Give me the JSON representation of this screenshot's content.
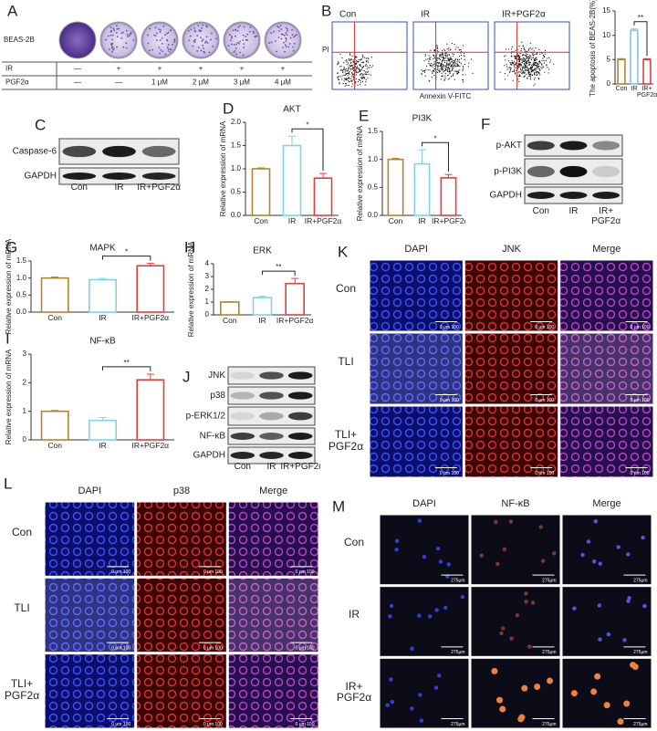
{
  "chart_data": [
    {
      "type": "bar",
      "y_label": "The apoptosis of BEAS-2B(%)",
      "categories": [
        "Con",
        "IR",
        "IR+ PGF2α"
      ],
      "values": [
        5,
        11,
        5
      ],
      "errors": [
        0.2,
        0.3,
        0.2
      ],
      "colors": [
        "#b5832e",
        "#7fc8e8",
        "#e0403a"
      ],
      "ylim": [
        0,
        15
      ],
      "yticks": [
        0,
        5,
        10,
        15
      ],
      "annotation": "**"
    },
    {
      "type": "bar",
      "title": "AKT",
      "y_label": "Relative expression of mRNA",
      "categories": [
        "Con",
        "IR",
        "IR+PGF2α"
      ],
      "values": [
        1.0,
        1.5,
        0.8
      ],
      "errors": [
        0.02,
        0.2,
        0.1
      ],
      "colors": [
        "#b5832e",
        "#7fd3e6",
        "#e0403a"
      ],
      "ylim": [
        0,
        2
      ],
      "yticks": [
        {
          "value": 0,
          "label": "0.0"
        },
        0.5,
        {
          "value": 1,
          "label": "1.0"
        },
        1.5,
        {
          "value": 2,
          "label": "2.0"
        }
      ],
      "annotation": "*"
    },
    {
      "type": "bar",
      "title": "PI3K",
      "y_label": "Relative expression of mRNA",
      "categories": [
        "Con",
        "IR",
        "IR+PGF2α"
      ],
      "values": [
        1.0,
        0.92,
        0.67
      ],
      "errors": [
        0.02,
        0.25,
        0.06
      ],
      "colors": [
        "#b5832e",
        "#7fd3e6",
        "#e0403a"
      ],
      "ylim": [
        0,
        1.5
      ],
      "yticks": [
        {
          "value": 0,
          "label": "0.0"
        },
        0.5,
        {
          "value": 1,
          "label": "1.0"
        },
        1.5
      ],
      "annotation": "*"
    },
    {
      "type": "bar",
      "title": "MAPK",
      "y_label": "Relative expression of mRNA",
      "categories": [
        "Con",
        "IR",
        "IR+PGF2α"
      ],
      "values": [
        1.0,
        0.95,
        1.36
      ],
      "errors": [
        0.03,
        0.04,
        0.07
      ],
      "colors": [
        "#b5832e",
        "#7fd3e6",
        "#e0403a"
      ],
      "ylim": [
        0,
        1.5
      ],
      "yticks": [
        {
          "value": 0,
          "label": "0.0"
        },
        0.5,
        {
          "value": 1,
          "label": "1.0"
        },
        1.5
      ],
      "annotation": "*"
    },
    {
      "type": "bar",
      "title": "ERK",
      "y_label": "Relative expression of mRNA",
      "categories": [
        "Con",
        "IR",
        "IR+PGF2α"
      ],
      "values": [
        1.0,
        1.35,
        2.45
      ],
      "errors": [
        0.03,
        0.1,
        0.4
      ],
      "colors": [
        "#b5832e",
        "#7fd3e6",
        "#e0403a"
      ],
      "ylim": [
        0,
        4
      ],
      "yticks": [
        0,
        1,
        2,
        3,
        4
      ],
      "annotation": "**"
    },
    {
      "type": "bar",
      "title": "NF-κB",
      "y_label": "Relative expression of mRNA",
      "categories": [
        "Con",
        "IR",
        "IR+PGF2α"
      ],
      "values": [
        1.0,
        0.68,
        2.1
      ],
      "errors": [
        0.03,
        0.1,
        0.2
      ],
      "colors": [
        "#b5832e",
        "#7fd3e6",
        "#e0403a"
      ],
      "ylim": [
        0,
        3
      ],
      "yticks": [
        0,
        1,
        2,
        3
      ],
      "annotation": "**"
    }
  ],
  "panels": {
    "A": {
      "letter": "A",
      "cell_line": "BEAS-2B",
      "table": [
        {
          "label": "IR",
          "cells": [
            "—",
            "+",
            "+",
            "+",
            "+",
            "+"
          ]
        },
        {
          "label": "PGF2α",
          "cells": [
            "—",
            "—",
            "1 μM",
            "2 μM",
            "3 μM",
            "4 μM"
          ]
        }
      ]
    },
    "B": {
      "letter": "B",
      "plots": [
        "Con",
        "IR",
        "IR+PGF2α"
      ],
      "y_axis": "PI",
      "x_axis": "Annexin V-FITC"
    },
    "C": {
      "letter": "C",
      "rows": [
        "Caspase-6",
        "GAPDH"
      ],
      "lanes": [
        "Con",
        "IR",
        "IR+PGF2α"
      ]
    },
    "D": {
      "letter": "D"
    },
    "E": {
      "letter": "E"
    },
    "F": {
      "letter": "F",
      "rows": [
        "p-AKT",
        "p-PI3K",
        "GAPDH"
      ],
      "lanes": [
        "Con",
        "IR",
        "IR+ PGF2α"
      ]
    },
    "G": {
      "letter": "G"
    },
    "H": {
      "letter": "H"
    },
    "I": {
      "letter": "I"
    },
    "J": {
      "letter": "J",
      "rows": [
        "JNK",
        "p38",
        "p-ERK1/2",
        "NF-κB",
        "GAPDH"
      ],
      "lanes": [
        "Con",
        "IR",
        "IR+PGF2α"
      ]
    },
    "K": {
      "letter": "K",
      "columns": [
        "DAPI",
        "JNK",
        "Merge"
      ],
      "rows": [
        "Con",
        "TLI",
        "TLI+ PGF2α"
      ],
      "scale_bar": "0 μm 100"
    },
    "L": {
      "letter": "L",
      "columns": [
        "DAPI",
        "p38",
        "Merge"
      ],
      "rows": [
        "Con",
        "TLI",
        "TLI+ PGF2α"
      ],
      "scale_bar": "0 μm 100"
    },
    "M": {
      "letter": "M",
      "columns": [
        "DAPI",
        "NF-κB",
        "Merge"
      ],
      "rows": [
        "Con",
        "IR",
        "IR+ PGF2α"
      ],
      "scale_bar": "275μm"
    }
  }
}
